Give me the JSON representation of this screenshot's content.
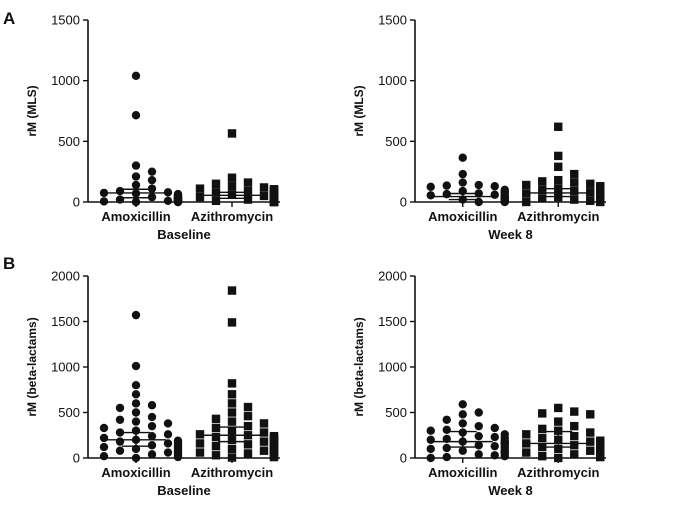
{
  "panel_labels": [
    "A",
    "B"
  ],
  "chart_data": [
    {
      "type": "scatter",
      "id": "A-baseline",
      "ylabel": "rM (MLS)",
      "xlabel": "Baseline",
      "ylim": [
        0,
        1500
      ],
      "yticks": [
        0,
        500,
        1000,
        1500
      ],
      "categories": [
        "Amoxicillin",
        "Azithromycin"
      ],
      "series": [
        {
          "name": "Amoxicillin",
          "marker": "circle",
          "values": [
            1040,
            715,
            300,
            250,
            210,
            180,
            140,
            110,
            90,
            80,
            75,
            70,
            65,
            60,
            55,
            50,
            45,
            40,
            38,
            35,
            32,
            30,
            28,
            25,
            22,
            20,
            18,
            15,
            12,
            10,
            8,
            6,
            5,
            4,
            3,
            2,
            1,
            0,
            0,
            0
          ],
          "mean": 75,
          "error": [
            35,
            105
          ]
        },
        {
          "name": "Azithromycin",
          "marker": "square",
          "values": [
            565,
            200,
            160,
            150,
            130,
            120,
            110,
            105,
            100,
            95,
            90,
            85,
            80,
            70,
            65,
            60,
            55,
            50,
            45,
            40,
            38,
            35,
            30,
            28,
            25,
            22,
            20,
            18,
            15,
            12,
            10,
            8,
            6,
            5,
            3,
            2,
            0,
            0,
            0
          ],
          "mean": 55,
          "error": [
            30,
            80
          ]
        }
      ]
    },
    {
      "type": "scatter",
      "id": "A-week8",
      "ylabel": "rM (MLS)",
      "xlabel": "Week 8",
      "ylim": [
        0,
        1500
      ],
      "yticks": [
        0,
        500,
        1000,
        1500
      ],
      "categories": [
        "Amoxicillin",
        "Azithromycin"
      ],
      "series": [
        {
          "name": "Amoxicillin",
          "marker": "circle",
          "values": [
            365,
            230,
            160,
            140,
            135,
            130,
            125,
            100,
            90,
            85,
            80,
            75,
            70,
            65,
            60,
            55,
            50,
            45,
            40,
            35,
            30,
            25,
            20,
            18,
            15,
            12,
            10,
            8,
            6,
            4,
            2,
            0,
            0
          ],
          "mean": 45,
          "error": [
            20,
            70
          ]
        },
        {
          "name": "Azithromycin",
          "marker": "square",
          "values": [
            620,
            380,
            290,
            230,
            180,
            170,
            160,
            150,
            140,
            130,
            120,
            110,
            100,
            95,
            90,
            80,
            75,
            70,
            65,
            60,
            55,
            50,
            45,
            40,
            35,
            30,
            25,
            20,
            15,
            12,
            10,
            8,
            6,
            4,
            2,
            0,
            0
          ],
          "mean": 75,
          "error": [
            45,
            110
          ]
        }
      ]
    },
    {
      "type": "scatter",
      "id": "B-baseline",
      "ylabel": "rM (beta-lactams)",
      "xlabel": "Baseline",
      "ylim": [
        0,
        2000
      ],
      "yticks": [
        0,
        500,
        1000,
        1500,
        2000
      ],
      "categories": [
        "Amoxicillin",
        "Azithromycin"
      ],
      "series": [
        {
          "name": "Amoxicillin",
          "marker": "circle",
          "values": [
            1570,
            1010,
            800,
            700,
            600,
            580,
            550,
            500,
            450,
            420,
            400,
            380,
            350,
            330,
            300,
            280,
            260,
            240,
            220,
            200,
            190,
            180,
            170,
            160,
            150,
            140,
            130,
            120,
            110,
            100,
            90,
            80,
            70,
            60,
            50,
            40,
            30,
            20,
            10,
            0
          ],
          "mean": 200,
          "error": [
            130,
            280
          ]
        },
        {
          "name": "Azithromycin",
          "marker": "square",
          "values": [
            1840,
            1490,
            820,
            700,
            600,
            560,
            500,
            460,
            430,
            400,
            380,
            350,
            330,
            300,
            280,
            260,
            250,
            240,
            230,
            220,
            210,
            200,
            190,
            180,
            170,
            160,
            150,
            140,
            130,
            120,
            110,
            100,
            90,
            80,
            70,
            60,
            50,
            40,
            30,
            20,
            10,
            5
          ],
          "mean": 250,
          "error": [
            180,
            340
          ]
        }
      ]
    },
    {
      "type": "scatter",
      "id": "B-week8",
      "ylabel": "rM (beta-lactams)",
      "xlabel": "Week 8",
      "ylim": [
        0,
        2000
      ],
      "yticks": [
        0,
        500,
        1000,
        1500,
        2000
      ],
      "categories": [
        "Amoxicillin",
        "Azithromycin"
      ],
      "series": [
        {
          "name": "Amoxicillin",
          "marker": "circle",
          "values": [
            590,
            500,
            480,
            420,
            380,
            350,
            330,
            310,
            300,
            280,
            260,
            240,
            230,
            220,
            210,
            200,
            190,
            180,
            170,
            160,
            150,
            140,
            130,
            120,
            110,
            100,
            90,
            80,
            70,
            60,
            50,
            40,
            30,
            20,
            10,
            0
          ],
          "mean": 180,
          "error": [
            120,
            290
          ]
        },
        {
          "name": "Azithromycin",
          "marker": "square",
          "values": [
            550,
            510,
            490,
            480,
            400,
            350,
            320,
            300,
            280,
            260,
            240,
            220,
            200,
            190,
            180,
            170,
            160,
            150,
            140,
            130,
            120,
            110,
            100,
            90,
            80,
            70,
            60,
            50,
            40,
            30,
            20,
            10,
            0
          ],
          "mean": 160,
          "error": [
            120,
            290
          ]
        }
      ]
    }
  ]
}
